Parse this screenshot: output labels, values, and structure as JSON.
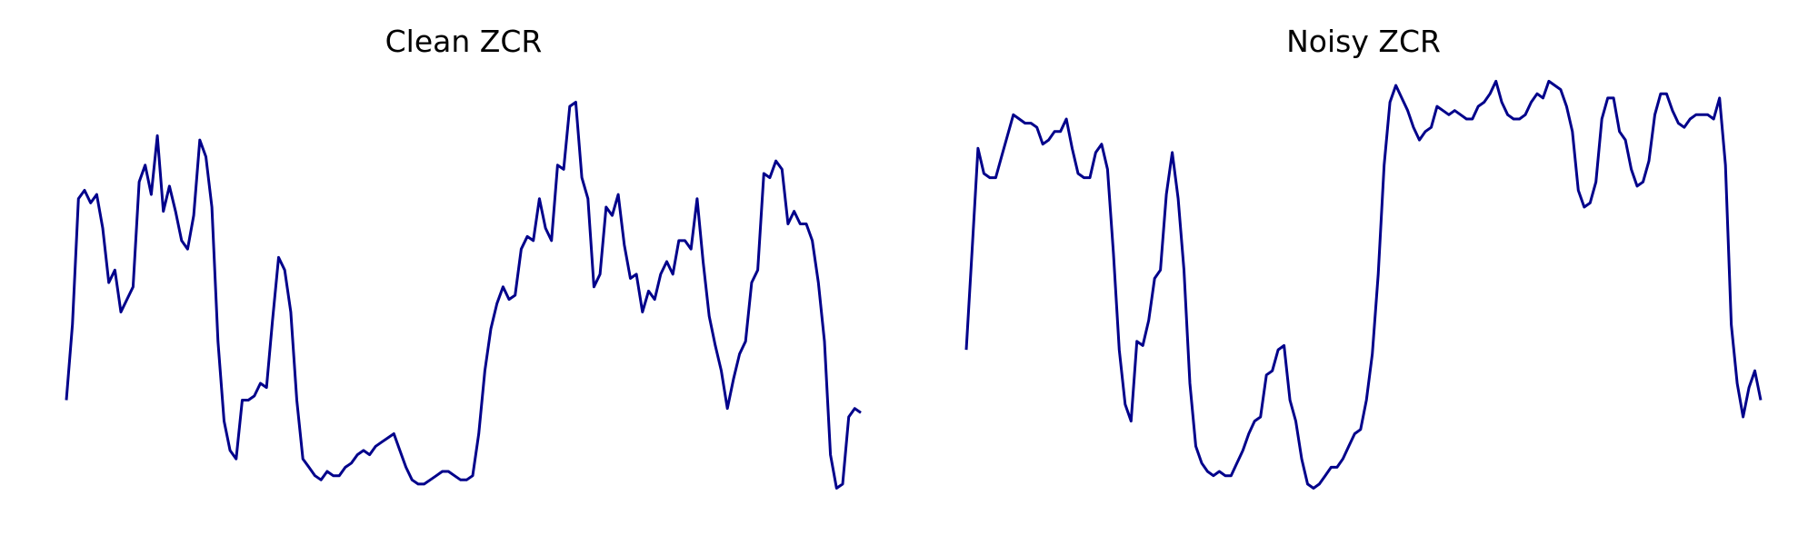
{
  "figure": {
    "line_color": "#00008b",
    "background": "#ffffff"
  },
  "chart_data": [
    {
      "type": "line",
      "title": "Clean ZCR",
      "axes": "off",
      "grid": false,
      "ylim": [
        0,
        1
      ],
      "series": [
        {
          "values": [
            0.25,
            0.43,
            0.73,
            0.75,
            0.72,
            0.74,
            0.66,
            0.53,
            0.56,
            0.46,
            0.49,
            0.52,
            0.77,
            0.81,
            0.74,
            0.88,
            0.7,
            0.76,
            0.7,
            0.63,
            0.61,
            0.69,
            0.87,
            0.83,
            0.71,
            0.39,
            0.2,
            0.13,
            0.11,
            0.25,
            0.25,
            0.26,
            0.29,
            0.28,
            0.44,
            0.59,
            0.56,
            0.46,
            0.25,
            0.11,
            0.09,
            0.07,
            0.06,
            0.08,
            0.07,
            0.07,
            0.09,
            0.1,
            0.12,
            0.13,
            0.12,
            0.14,
            0.15,
            0.16,
            0.17,
            0.13,
            0.09,
            0.06,
            0.05,
            0.05,
            0.06,
            0.07,
            0.08,
            0.08,
            0.07,
            0.06,
            0.06,
            0.07,
            0.17,
            0.32,
            0.42,
            0.48,
            0.52,
            0.49,
            0.5,
            0.61,
            0.64,
            0.63,
            0.73,
            0.66,
            0.63,
            0.81,
            0.8,
            0.95,
            0.96,
            0.78,
            0.73,
            0.52,
            0.55,
            0.71,
            0.69,
            0.74,
            0.62,
            0.54,
            0.55,
            0.46,
            0.51,
            0.49,
            0.55,
            0.58,
            0.55,
            0.63,
            0.63,
            0.61,
            0.73,
            0.58,
            0.45,
            0.38,
            0.32,
            0.23,
            0.3,
            0.36,
            0.39,
            0.53,
            0.56,
            0.79,
            0.78,
            0.82,
            0.8,
            0.67,
            0.7,
            0.67,
            0.67,
            0.63,
            0.53,
            0.39,
            0.12,
            0.04,
            0.05,
            0.21,
            0.23,
            0.22
          ]
        }
      ]
    },
    {
      "type": "line",
      "title": "Noisy ZCR",
      "axes": "off",
      "grid": false,
      "ylim": [
        0,
        1
      ],
      "series": [
        {
          "values": [
            0.37,
            0.61,
            0.85,
            0.79,
            0.78,
            0.78,
            0.83,
            0.88,
            0.93,
            0.92,
            0.91,
            0.91,
            0.9,
            0.86,
            0.87,
            0.89,
            0.89,
            0.92,
            0.85,
            0.79,
            0.78,
            0.78,
            0.84,
            0.86,
            0.8,
            0.6,
            0.37,
            0.24,
            0.2,
            0.39,
            0.38,
            0.44,
            0.54,
            0.56,
            0.74,
            0.84,
            0.73,
            0.56,
            0.29,
            0.14,
            0.1,
            0.08,
            0.07,
            0.08,
            0.07,
            0.07,
            0.1,
            0.13,
            0.17,
            0.2,
            0.21,
            0.31,
            0.32,
            0.37,
            0.38,
            0.25,
            0.2,
            0.11,
            0.05,
            0.04,
            0.05,
            0.07,
            0.09,
            0.09,
            0.11,
            0.14,
            0.17,
            0.18,
            0.25,
            0.36,
            0.55,
            0.81,
            0.96,
            1.0,
            0.97,
            0.94,
            0.9,
            0.87,
            0.89,
            0.9,
            0.95,
            0.94,
            0.93,
            0.94,
            0.93,
            0.92,
            0.92,
            0.95,
            0.96,
            0.98,
            1.01,
            0.96,
            0.93,
            0.92,
            0.92,
            0.93,
            0.96,
            0.98,
            0.97,
            1.01,
            1.0,
            0.99,
            0.95,
            0.89,
            0.75,
            0.71,
            0.72,
            0.77,
            0.92,
            0.97,
            0.97,
            0.89,
            0.87,
            0.8,
            0.76,
            0.77,
            0.82,
            0.93,
            0.98,
            0.98,
            0.94,
            0.91,
            0.9,
            0.92,
            0.93,
            0.93,
            0.93,
            0.92,
            0.97,
            0.81,
            0.43,
            0.29,
            0.21,
            0.28,
            0.32,
            0.25
          ]
        }
      ]
    }
  ]
}
